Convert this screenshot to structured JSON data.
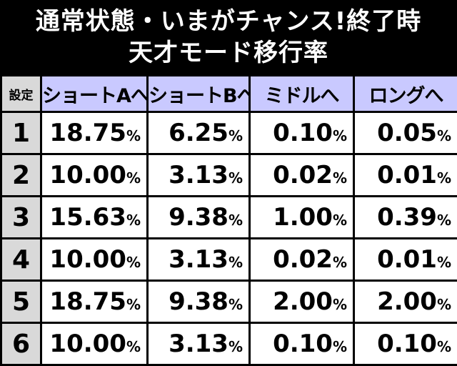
{
  "title": {
    "line1": "通常状態・いまがチャンス!終了時",
    "line2": "天才モード移行率"
  },
  "table": {
    "headers": [
      "設定",
      "ショートAへ",
      "ショートBへ",
      "ミドルへ",
      "ロングへ"
    ],
    "percent_sign": "%",
    "rows": [
      {
        "setting": "1",
        "values": [
          "18.75",
          "6.25",
          "0.10",
          "0.05"
        ]
      },
      {
        "setting": "2",
        "values": [
          "10.00",
          "3.13",
          "0.02",
          "0.01"
        ]
      },
      {
        "setting": "3",
        "values": [
          "15.63",
          "9.38",
          "1.00",
          "0.39"
        ]
      },
      {
        "setting": "4",
        "values": [
          "10.00",
          "3.13",
          "0.02",
          "0.01"
        ]
      },
      {
        "setting": "5",
        "values": [
          "18.75",
          "9.38",
          "2.00",
          "2.00"
        ]
      },
      {
        "setting": "6",
        "values": [
          "10.00",
          "3.13",
          "0.10",
          "0.10"
        ]
      }
    ]
  },
  "colors": {
    "header_bg": "#c9c9ff",
    "setting_bg": "#d9d9d9",
    "cell_bg": "#ffffff",
    "title_bg": "#000000",
    "title_text": "#ffffff"
  }
}
